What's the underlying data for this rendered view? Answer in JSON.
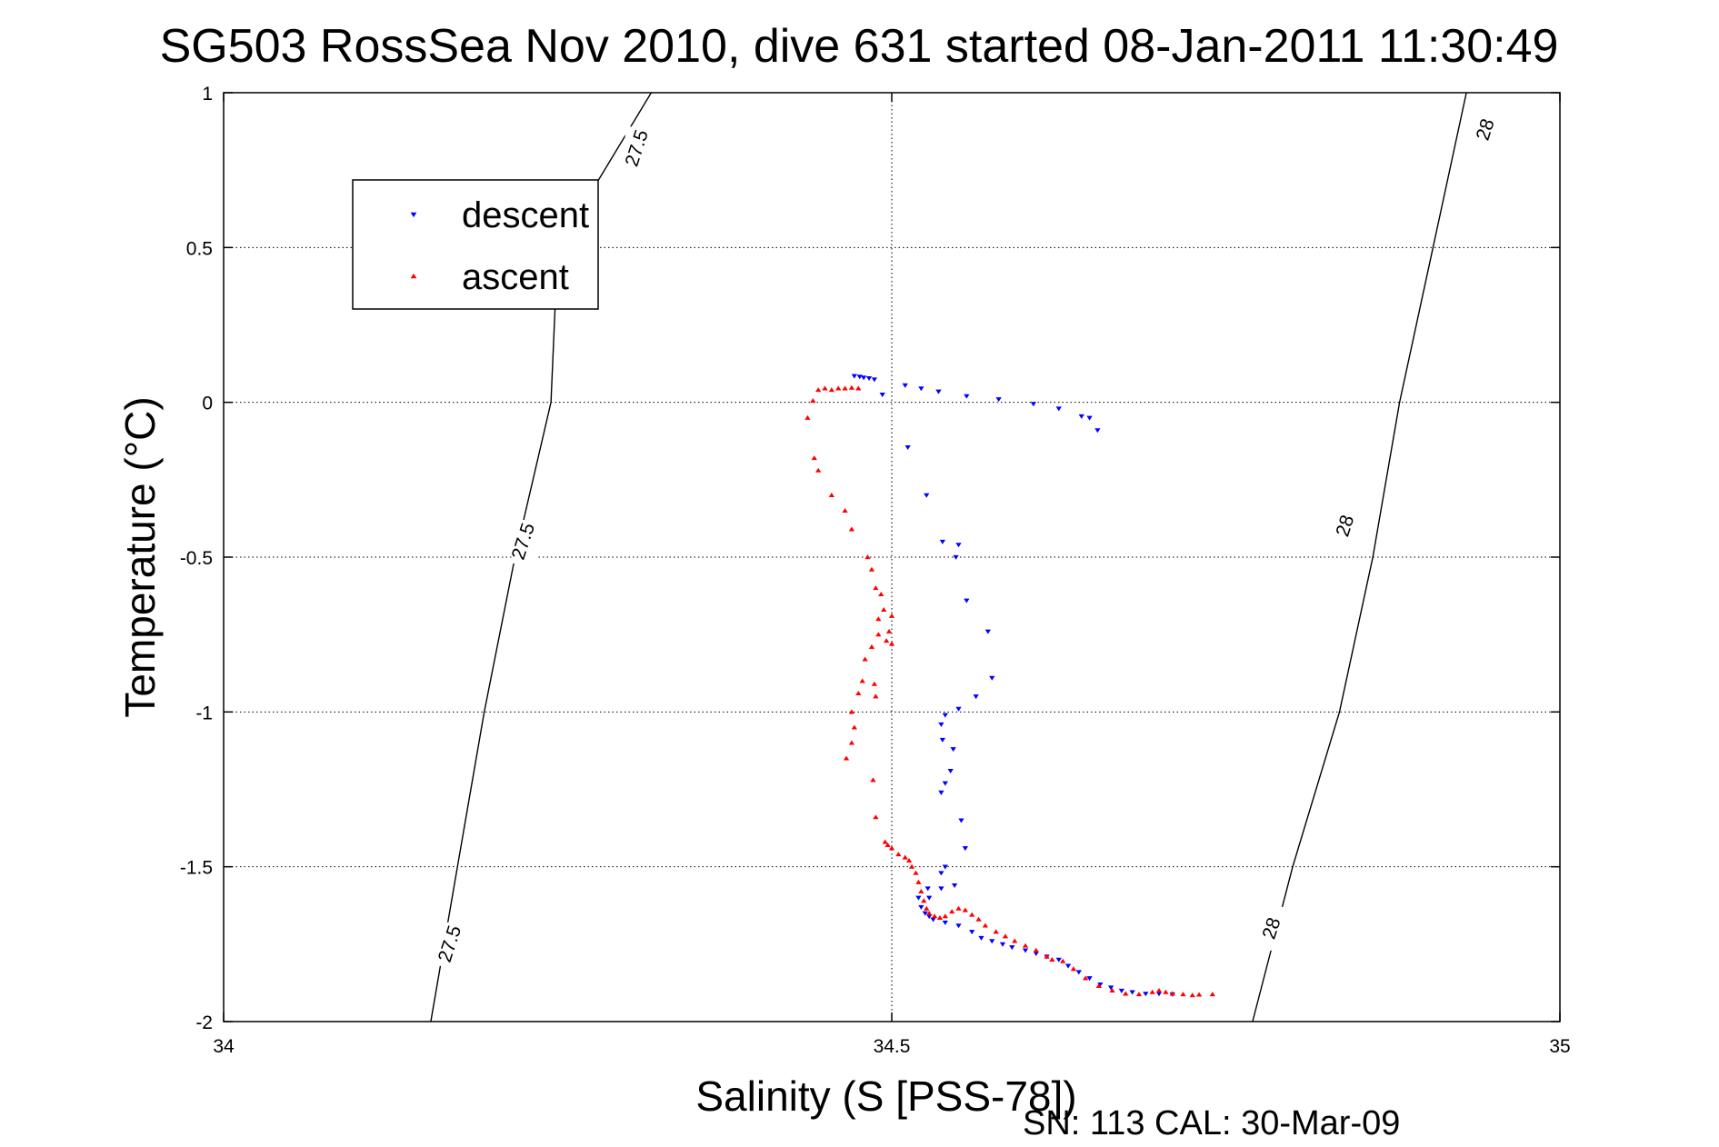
{
  "chart_data": {
    "type": "scatter",
    "title": "SG503 RossSea Nov 2010, dive 631 started 08-Jan-2011 11:30:49",
    "xlabel": "Salinity (S [PSS-78])",
    "ylabel": "Temperature (°C)",
    "footer": "SN: 113  CAL: 30-Mar-09",
    "xlim": [
      34,
      35
    ],
    "ylim": [
      -2,
      1
    ],
    "xticks": [
      34,
      34.5,
      35
    ],
    "xtick_labels": [
      "34",
      "34.5",
      "35"
    ],
    "yticks": [
      1,
      0.5,
      0,
      -0.5,
      -1,
      -1.5,
      -2
    ],
    "ytick_labels": [
      "1",
      "0.5",
      "0",
      "-0.5",
      "-1",
      "-1.5",
      "-2"
    ],
    "grid": true,
    "legend_placement": "top-left",
    "contours": [
      {
        "label": "27.5",
        "points": [
          [
            34.32,
            1.0
          ],
          [
            34.25,
            0.5
          ],
          [
            34.245,
            0.0
          ],
          [
            34.218,
            -0.5
          ],
          [
            34.195,
            -1.0
          ],
          [
            34.175,
            -1.5
          ],
          [
            34.155,
            -2.0
          ]
        ],
        "label_positions": [
          [
            34.31,
            0.82
          ],
          [
            34.225,
            -0.45
          ],
          [
            34.17,
            -1.75
          ]
        ]
      },
      {
        "label": "28",
        "points": [
          [
            34.93,
            1.0
          ],
          [
            34.905,
            0.5
          ],
          [
            34.88,
            0.0
          ],
          [
            34.86,
            -0.5
          ],
          [
            34.835,
            -1.0
          ],
          [
            34.8,
            -1.5
          ],
          [
            34.77,
            -2.0
          ]
        ],
        "label_positions": [
          [
            34.945,
            0.88
          ],
          [
            34.84,
            -0.4
          ],
          [
            34.785,
            -1.7
          ]
        ]
      }
    ],
    "series": [
      {
        "name": "descent",
        "color": "#0000ff",
        "marker": "triangle-down",
        "points": [
          [
            34.472,
            0.085
          ],
          [
            34.476,
            0.083
          ],
          [
            34.479,
            0.08
          ],
          [
            34.483,
            0.078
          ],
          [
            34.487,
            0.074
          ],
          [
            34.493,
            0.025
          ],
          [
            34.51,
            0.055
          ],
          [
            34.522,
            0.045
          ],
          [
            34.535,
            0.035
          ],
          [
            34.556,
            0.02
          ],
          [
            34.58,
            0.01
          ],
          [
            34.606,
            -0.005
          ],
          [
            34.625,
            -0.02
          ],
          [
            34.642,
            -0.045
          ],
          [
            34.648,
            -0.05
          ],
          [
            34.654,
            -0.09
          ],
          [
            34.512,
            -0.145
          ],
          [
            34.526,
            -0.3
          ],
          [
            34.538,
            -0.45
          ],
          [
            34.55,
            -0.46
          ],
          [
            34.548,
            -0.5
          ],
          [
            34.556,
            -0.64
          ],
          [
            34.572,
            -0.74
          ],
          [
            34.575,
            -0.89
          ],
          [
            34.563,
            -0.95
          ],
          [
            34.55,
            -0.99
          ],
          [
            34.54,
            -1.01
          ],
          [
            34.537,
            -1.04
          ],
          [
            34.538,
            -1.09
          ],
          [
            34.546,
            -1.12
          ],
          [
            34.544,
            -1.19
          ],
          [
            34.54,
            -1.23
          ],
          [
            34.537,
            -1.26
          ],
          [
            34.552,
            -1.35
          ],
          [
            34.555,
            -1.44
          ],
          [
            34.54,
            -1.5
          ],
          [
            34.537,
            -1.52
          ],
          [
            34.527,
            -1.57
          ],
          [
            34.537,
            -1.57
          ],
          [
            34.547,
            -1.56
          ],
          [
            34.52,
            -1.6
          ],
          [
            34.528,
            -1.6
          ],
          [
            34.522,
            -1.63
          ],
          [
            34.525,
            -1.65
          ],
          [
            34.528,
            -1.66
          ],
          [
            34.531,
            -1.67
          ],
          [
            34.54,
            -1.68
          ],
          [
            34.55,
            -1.69
          ],
          [
            34.56,
            -1.71
          ],
          [
            34.567,
            -1.73
          ],
          [
            34.575,
            -1.74
          ],
          [
            34.583,
            -1.75
          ],
          [
            34.59,
            -1.76
          ],
          [
            34.6,
            -1.77
          ],
          [
            34.608,
            -1.78
          ],
          [
            34.616,
            -1.79
          ],
          [
            34.625,
            -1.8
          ],
          [
            34.632,
            -1.82
          ],
          [
            34.64,
            -1.84
          ],
          [
            34.648,
            -1.86
          ],
          [
            34.656,
            -1.88
          ],
          [
            34.664,
            -1.89
          ],
          [
            34.672,
            -1.9
          ],
          [
            34.68,
            -1.905
          ],
          [
            34.69,
            -1.91
          ],
          [
            34.7,
            -1.91
          ],
          [
            34.71,
            -1.912
          ]
        ]
      },
      {
        "name": "ascent",
        "color": "#ff0000",
        "marker": "triangle-up",
        "points": [
          [
            34.445,
            0.04
          ],
          [
            34.45,
            0.045
          ],
          [
            34.455,
            0.04
          ],
          [
            34.46,
            0.045
          ],
          [
            34.465,
            0.045
          ],
          [
            34.47,
            0.047
          ],
          [
            34.475,
            0.045
          ],
          [
            34.441,
            0.005
          ],
          [
            34.437,
            -0.05
          ],
          [
            34.442,
            -0.18
          ],
          [
            34.445,
            -0.22
          ],
          [
            34.455,
            -0.3
          ],
          [
            34.465,
            -0.35
          ],
          [
            34.47,
            -0.41
          ],
          [
            34.482,
            -0.5
          ],
          [
            34.485,
            -0.54
          ],
          [
            34.488,
            -0.6
          ],
          [
            34.492,
            -0.62
          ],
          [
            34.494,
            -0.67
          ],
          [
            34.49,
            -0.7
          ],
          [
            34.5,
            -0.69
          ],
          [
            34.498,
            -0.74
          ],
          [
            34.49,
            -0.75
          ],
          [
            34.496,
            -0.77
          ],
          [
            34.5,
            -0.78
          ],
          [
            34.485,
            -0.79
          ],
          [
            34.48,
            -0.83
          ],
          [
            34.478,
            -0.9
          ],
          [
            34.487,
            -0.91
          ],
          [
            34.475,
            -0.94
          ],
          [
            34.488,
            -0.95
          ],
          [
            34.47,
            -1.0
          ],
          [
            34.472,
            -1.05
          ],
          [
            34.47,
            -1.1
          ],
          [
            34.466,
            -1.15
          ],
          [
            34.486,
            -1.22
          ],
          [
            34.488,
            -1.34
          ],
          [
            34.495,
            -1.42
          ],
          [
            34.497,
            -1.43
          ],
          [
            34.5,
            -1.44
          ],
          [
            34.505,
            -1.46
          ],
          [
            34.51,
            -1.47
          ],
          [
            34.513,
            -1.48
          ],
          [
            34.515,
            -1.5
          ],
          [
            34.518,
            -1.52
          ],
          [
            34.52,
            -1.55
          ],
          [
            34.522,
            -1.58
          ],
          [
            34.524,
            -1.61
          ],
          [
            34.526,
            -1.635
          ],
          [
            34.528,
            -1.65
          ],
          [
            34.532,
            -1.66
          ],
          [
            34.536,
            -1.665
          ],
          [
            34.54,
            -1.66
          ],
          [
            34.545,
            -1.645
          ],
          [
            34.55,
            -1.635
          ],
          [
            34.555,
            -1.64
          ],
          [
            34.56,
            -1.655
          ],
          [
            34.565,
            -1.67
          ],
          [
            34.57,
            -1.69
          ],
          [
            34.578,
            -1.71
          ],
          [
            34.585,
            -1.725
          ],
          [
            34.592,
            -1.74
          ],
          [
            34.6,
            -1.755
          ],
          [
            34.608,
            -1.77
          ],
          [
            34.616,
            -1.79
          ],
          [
            34.62,
            -1.8
          ],
          [
            34.628,
            -1.805
          ],
          [
            34.636,
            -1.83
          ],
          [
            34.645,
            -1.86
          ],
          [
            34.655,
            -1.885
          ],
          [
            34.665,
            -1.9
          ],
          [
            34.675,
            -1.91
          ],
          [
            34.685,
            -1.912
          ],
          [
            34.695,
            -1.905
          ],
          [
            34.7,
            -1.9
          ],
          [
            34.705,
            -1.905
          ],
          [
            34.71,
            -1.91
          ],
          [
            34.718,
            -1.912
          ],
          [
            34.725,
            -1.915
          ],
          [
            34.73,
            -1.913
          ],
          [
            34.74,
            -1.912
          ]
        ]
      }
    ]
  }
}
